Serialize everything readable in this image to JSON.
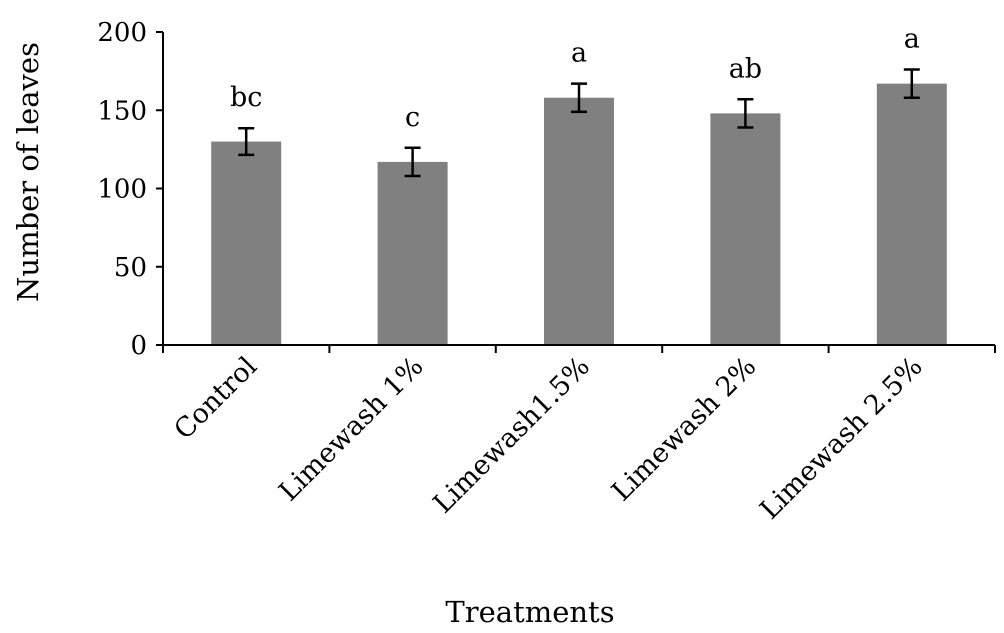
{
  "chart_data": {
    "type": "bar",
    "title": "",
    "xlabel": "Treatments",
    "ylabel": "Number of leaves",
    "ylim": [
      0,
      200
    ],
    "yticks": [
      0,
      50,
      100,
      150,
      200
    ],
    "grid": false,
    "legend": "none",
    "bar_color": "#808080",
    "categories": [
      "Control",
      "Limewash 1%",
      "Limewash1.5%",
      "Limewash 2%",
      "Limewash 2.5%"
    ],
    "values": [
      130,
      117,
      158,
      148,
      167
    ],
    "errors": [
      8.5,
      9,
      9,
      9,
      9
    ],
    "significance_letters": [
      "bc",
      "c",
      "a",
      "ab",
      "a"
    ]
  }
}
